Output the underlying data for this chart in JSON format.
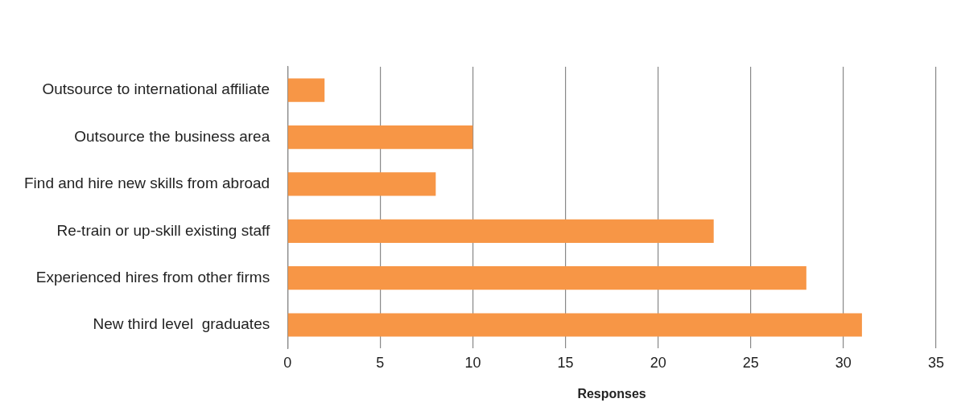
{
  "chart_data": {
    "type": "bar",
    "orientation": "horizontal",
    "xlabel": "Responses",
    "categories": [
      "Outsource to international affiliate",
      "Outsource the business area",
      "Find and hire new skills from abroad",
      "Re-train or up-skill existing staff",
      "Experienced hires from other firms",
      "New third level  graduates"
    ],
    "values": [
      2,
      10,
      8,
      23,
      28,
      31
    ],
    "color": "#f79646",
    "xlim": [
      0,
      35
    ],
    "xticks": [
      0,
      5,
      10,
      15,
      20,
      25,
      30,
      35
    ],
    "grid": "x",
    "legend": false
  }
}
